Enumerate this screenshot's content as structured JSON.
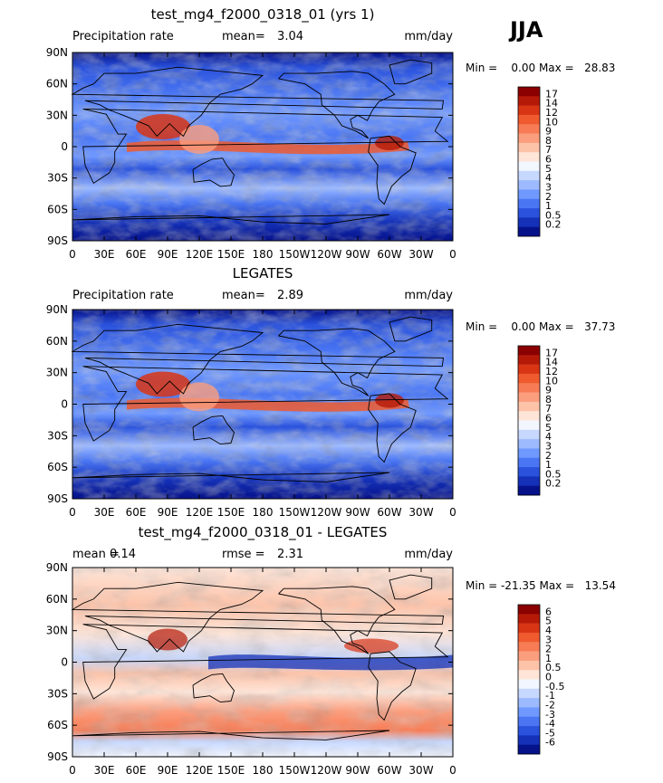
{
  "season": "JJA",
  "x_ticks": [
    "0",
    "30E",
    "60E",
    "90E",
    "120E",
    "150E",
    "180",
    "150W",
    "120W",
    "90W",
    "60W",
    "30W",
    "0"
  ],
  "y_ticks": [
    "90N",
    "60N",
    "30N",
    "0",
    "30S",
    "60S",
    "90S"
  ],
  "panels": [
    {
      "title": "test_mg4_f2000_0318_01 (yrs 1)",
      "left_label": "Precipitation rate",
      "stat_label": "mean=",
      "stat_value": "3.04",
      "extra_label": "",
      "extra_value": "",
      "units": "mm/day",
      "minmax": "Min =    0.00 Max =   28.83",
      "colorbar": {
        "labels": [
          "17",
          "14",
          "12",
          "10",
          "9",
          "8",
          "7",
          "6",
          "5",
          "4",
          "3",
          "2",
          "1",
          "0.5",
          "0.2"
        ],
        "colors": [
          "#8b0000",
          "#b51a08",
          "#d83515",
          "#ef5a2f",
          "#f77c55",
          "#fb9e7e",
          "#fdc3a9",
          "#fee5d8",
          "#f2f6ff",
          "#c7d8ff",
          "#9dbaff",
          "#7099ff",
          "#4a76f3",
          "#2a52dc",
          "#1431b8",
          "#06128a"
        ]
      }
    },
    {
      "title": "LEGATES",
      "left_label": "Precipitation rate",
      "stat_label": "mean=",
      "stat_value": "2.89",
      "extra_label": "",
      "extra_value": "",
      "units": "mm/day",
      "minmax": "Min =    0.00 Max =   37.73",
      "colorbar": {
        "labels": [
          "17",
          "14",
          "12",
          "10",
          "9",
          "8",
          "7",
          "6",
          "5",
          "4",
          "3",
          "2",
          "1",
          "0.5",
          "0.2"
        ],
        "colors": [
          "#8b0000",
          "#b51a08",
          "#d83515",
          "#ef5a2f",
          "#f77c55",
          "#fb9e7e",
          "#fdc3a9",
          "#fee5d8",
          "#f2f6ff",
          "#c7d8ff",
          "#9dbaff",
          "#7099ff",
          "#4a76f3",
          "#2a52dc",
          "#1431b8",
          "#06128a"
        ]
      }
    },
    {
      "title": "test_mg4_f2000_0318_01 - LEGATES",
      "left_label": "mean =",
      "stat_label": "",
      "stat_value": "0.14",
      "extra_label": "rmse =",
      "extra_value": "2.31",
      "units": "mm/day",
      "minmax": "Min = -21.35 Max =   13.54",
      "colorbar": {
        "labels": [
          "6",
          "5",
          "4",
          "3",
          "2",
          "1",
          "0.5",
          "0",
          "-0.5",
          "-1",
          "-2",
          "-3",
          "-4",
          "-5",
          "-6"
        ],
        "colors": [
          "#8b0000",
          "#b51a08",
          "#d83515",
          "#ef5a2f",
          "#f77c55",
          "#fb9e7e",
          "#fdc3a9",
          "#fee5d8",
          "#f2f6ff",
          "#c7d8ff",
          "#9dbaff",
          "#7099ff",
          "#4a76f3",
          "#2a52dc",
          "#1431b8",
          "#06128a"
        ]
      }
    }
  ],
  "chart_data": [
    {
      "type": "heatmap",
      "title": "test_mg4_f2000_0318_01 (yrs 1)",
      "field": "Precipitation rate",
      "units": "mm/day",
      "mean": 3.04,
      "min": 0.0,
      "max": 28.83,
      "xlim": [
        0,
        360
      ],
      "ylim": [
        -90,
        90
      ],
      "contour_levels": [
        0.2,
        0.5,
        1,
        2,
        3,
        4,
        5,
        6,
        7,
        8,
        9,
        10,
        12,
        14,
        17
      ],
      "season": "JJA"
    },
    {
      "type": "heatmap",
      "title": "LEGATES",
      "field": "Precipitation rate",
      "units": "mm/day",
      "mean": 2.89,
      "min": 0.0,
      "max": 37.73,
      "xlim": [
        0,
        360
      ],
      "ylim": [
        -90,
        90
      ],
      "contour_levels": [
        0.2,
        0.5,
        1,
        2,
        3,
        4,
        5,
        6,
        7,
        8,
        9,
        10,
        12,
        14,
        17
      ]
    },
    {
      "type": "heatmap",
      "title": "test_mg4_f2000_0318_01 - LEGATES",
      "units": "mm/day",
      "mean": 0.14,
      "rmse": 2.31,
      "min": -21.35,
      "max": 13.54,
      "xlim": [
        0,
        360
      ],
      "ylim": [
        -90,
        90
      ],
      "contour_levels": [
        -6,
        -5,
        -4,
        -3,
        -2,
        -1,
        -0.5,
        0,
        0.5,
        1,
        2,
        3,
        4,
        5,
        6
      ]
    }
  ]
}
